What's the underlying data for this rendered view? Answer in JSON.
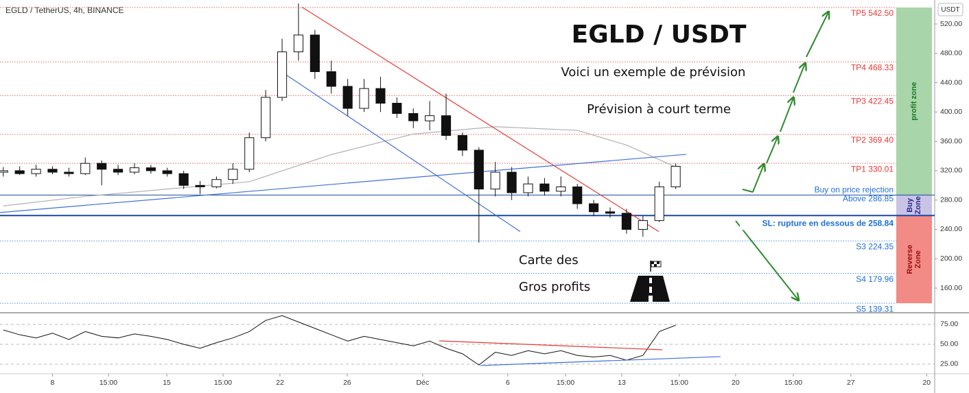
{
  "chart_data": [
    {
      "type": "candlestick",
      "title": "EGLD / TetherUS, 4h, BINANCE",
      "axis_unit": "USDT",
      "headline": "EGLD / USDT",
      "notes": [
        "Voici un exemple de prévision",
        "Prévision à court terme",
        "Carte des",
        "Gros profits"
      ],
      "x": [
        5,
        6,
        7,
        8,
        9,
        10,
        11,
        12,
        13,
        14,
        15,
        16,
        17,
        18,
        19,
        20,
        21,
        22,
        23,
        24,
        25,
        26,
        27,
        28,
        29,
        30,
        31,
        32,
        33,
        34,
        35,
        36,
        37,
        38,
        39,
        40,
        41,
        42,
        43,
        44,
        45,
        46
      ],
      "open": [
        318,
        320,
        316,
        322,
        318,
        316,
        330,
        322,
        318,
        324,
        320,
        316,
        300,
        298,
        308,
        322,
        365,
        420,
        482,
        505,
        455,
        435,
        405,
        432,
        412,
        398,
        388,
        395,
        368,
        348,
        295,
        318,
        290,
        302,
        292,
        298,
        275,
        264,
        262,
        240,
        252,
        298
      ],
      "high": [
        325,
        326,
        328,
        326,
        324,
        338,
        334,
        328,
        330,
        328,
        324,
        320,
        306,
        312,
        330,
        372,
        430,
        500,
        548,
        512,
        470,
        445,
        445,
        448,
        420,
        405,
        415,
        425,
        372,
        352,
        332,
        325,
        312,
        310,
        312,
        302,
        280,
        270,
        268,
        258,
        305,
        330
      ],
      "low": [
        312,
        314,
        312,
        315,
        312,
        314,
        300,
        314,
        315,
        316,
        312,
        295,
        288,
        296,
        302,
        318,
        360,
        415,
        470,
        445,
        425,
        395,
        400,
        400,
        392,
        378,
        375,
        362,
        340,
        222,
        285,
        280,
        285,
        286,
        285,
        268,
        258,
        256,
        234,
        230,
        250,
        295
      ],
      "close": [
        320,
        316,
        322,
        318,
        316,
        330,
        322,
        318,
        324,
        320,
        316,
        300,
        298,
        308,
        322,
        365,
        420,
        482,
        505,
        455,
        435,
        405,
        432,
        412,
        398,
        388,
        395,
        368,
        348,
        295,
        318,
        290,
        302,
        292,
        298,
        275,
        264,
        262,
        240,
        252,
        298,
        326
      ],
      "ma": {
        "x": [
          5,
          10,
          15,
          20,
          25,
          30,
          35,
          40,
          43,
          46
        ],
        "values": [
          272,
          285,
          295,
          305,
          342,
          370,
          380,
          375,
          355,
          325
        ],
        "color": "#b0b0b0"
      },
      "trendlines": [
        {
          "x": [
            23.21,
            44.97
          ],
          "values": [
            543,
            237
          ],
          "color": "#e53935"
        },
        {
          "x": [
            22.16,
            36.52
          ],
          "values": [
            452,
            237
          ],
          "color": "#3f6fd8"
        },
        {
          "x": [
            4.8,
            46.64
          ],
          "values": [
            263,
            342.3
          ],
          "color": "#3f6fd8"
        }
      ],
      "levels": [
        {
          "label": "TP5 542.50",
          "value": 542.5,
          "color": "#e53935"
        },
        {
          "label": "TP4 468.33",
          "value": 468.33,
          "color": "#e53935"
        },
        {
          "label": "TP3 422.45",
          "value": 422.45,
          "color": "#e53935"
        },
        {
          "label": "TP2 369.40",
          "value": 369.4,
          "color": "#e53935"
        },
        {
          "label": "TP1 330.01",
          "value": 330.01,
          "color": "#e53935"
        },
        {
          "label": "Above 286.85",
          "note": "Buy on price rejection",
          "value": 286.85,
          "color": "#1848a0",
          "solid": true
        },
        {
          "label": "SL: rupture en dessous de 258.84",
          "value": 258.84,
          "color": "#1848a0",
          "solid": true,
          "bold": true
        },
        {
          "label": "S3 224.35",
          "value": 224.35,
          "color": "#1e6fd9"
        },
        {
          "label": "S4 179.96",
          "value": 179.96,
          "color": "#1e6fd9"
        },
        {
          "label": "S5 139.31",
          "value": 139.31,
          "color": "#1e6fd9"
        }
      ],
      "zones": [
        {
          "lines": [
            "profit zone"
          ],
          "from": 286.85,
          "to": 542.5,
          "color": "#a8d5aa",
          "text": "#1b7a1f"
        },
        {
          "lines": [
            "Buy",
            "Zone"
          ],
          "from": 258.84,
          "to": 286.85,
          "color": "#c9c3e6",
          "text": "#2a2a8a"
        },
        {
          "lines": [
            "Reverse",
            "Zone"
          ],
          "from": 139.31,
          "to": 258.84,
          "color": "#f28b86",
          "text": "#9a1010"
        }
      ],
      "xlim": [
        4.8,
        61.79
      ],
      "xticks": [
        {
          "value": 8,
          "label": "8"
        },
        {
          "value": 11.41,
          "label": "15:00"
        },
        {
          "value": 14.97,
          "label": "15"
        },
        {
          "value": 18.4,
          "label": "15:00"
        },
        {
          "value": 21.87,
          "label": "22"
        },
        {
          "value": 25.97,
          "label": "26"
        },
        {
          "value": 30.57,
          "label": "Déc"
        },
        {
          "value": 35.76,
          "label": "6"
        },
        {
          "value": 39.28,
          "label": "15:00"
        },
        {
          "value": 42.71,
          "label": "13"
        },
        {
          "value": 46.22,
          "label": "15:00"
        },
        {
          "value": 49.65,
          "label": "20"
        },
        {
          "value": 53.17,
          "label": "15:00"
        },
        {
          "value": 56.68,
          "label": "27"
        },
        {
          "value": 61.3,
          "label": "20"
        }
      ],
      "ylim": [
        127.3,
        552.7
      ],
      "yticks": [
        {
          "value": 160,
          "label": "160.00"
        },
        {
          "value": 200,
          "label": "200.00"
        },
        {
          "value": 240,
          "label": "240.00"
        },
        {
          "value": 280,
          "label": "280.00"
        },
        {
          "value": 320,
          "label": "320.00"
        },
        {
          "value": 360,
          "label": "360.00"
        },
        {
          "value": 400,
          "label": "400.00"
        },
        {
          "value": 440,
          "label": "440.00"
        },
        {
          "value": 480,
          "label": "480.00"
        },
        {
          "value": 520,
          "label": "520.00"
        }
      ]
    },
    {
      "type": "line",
      "color": "#111",
      "x": [
        5,
        6,
        7,
        8,
        9,
        10,
        11,
        12,
        13,
        14,
        15,
        16,
        17,
        18,
        19,
        20,
        21,
        22,
        23,
        24,
        25,
        26,
        27,
        28,
        29,
        30,
        31,
        32,
        33,
        34,
        35,
        36,
        37,
        38,
        39,
        40,
        41,
        42,
        43,
        44,
        45,
        46
      ],
      "values": [
        68,
        62,
        58,
        64,
        56,
        66,
        60,
        58,
        63,
        60,
        56,
        50,
        45,
        52,
        58,
        66,
        80,
        86,
        78,
        70,
        62,
        54,
        60,
        56,
        52,
        48,
        54,
        45,
        38,
        24,
        40,
        36,
        42,
        38,
        42,
        36,
        34,
        36,
        30,
        36,
        66,
        74
      ],
      "trendlines": [
        {
          "x": [
            31.58,
            45.18
          ],
          "values": [
            54.3,
            43.1
          ],
          "color": "#e53935"
        },
        {
          "x": [
            34.09,
            48.73
          ],
          "values": [
            23.3,
            34.5
          ],
          "color": "#3f6fd8"
        }
      ],
      "xlim": [
        4.8,
        61.79
      ],
      "ylim": [
        12.9,
        87.9
      ],
      "yticks": [
        {
          "value": 25,
          "label": "25.00"
        },
        {
          "value": 50,
          "label": "50.00"
        },
        {
          "value": 75,
          "label": "75.00"
        }
      ]
    }
  ]
}
